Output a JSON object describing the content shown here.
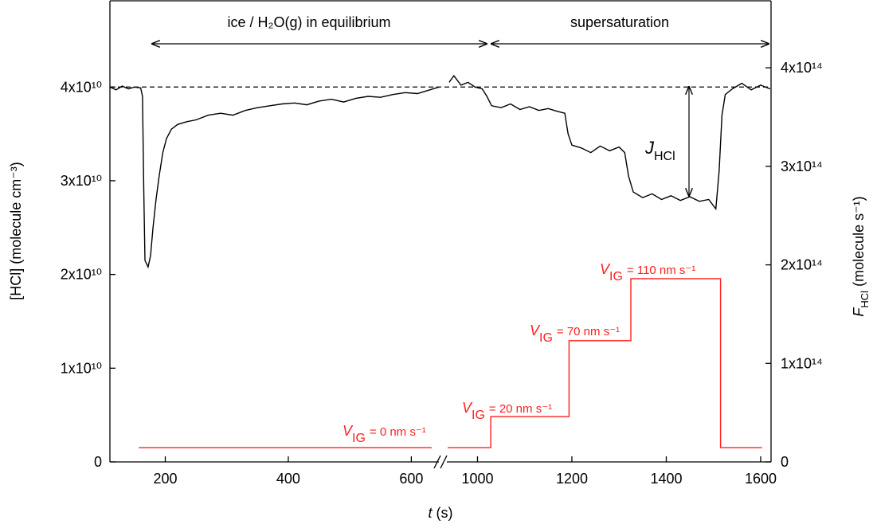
{
  "chart_data": {
    "type": "line",
    "x_label": {
      "symbol": "t",
      "text": "(s)"
    },
    "y_label": "[HCl] (molecule cm⁻³)",
    "y2_label": {
      "symbol": "F",
      "subscript": "HCl",
      "text": "(molecule s⁻¹)"
    },
    "xlim": [
      110,
      1622
    ],
    "xbreak": [
      650,
      930
    ],
    "xticks": [
      200,
      400,
      600,
      1000,
      1200,
      1400,
      1600
    ],
    "ylim": [
      0,
      49200000000.0
    ],
    "yticks": [
      0,
      {
        "value": 10000000000.0,
        "label": "1x10¹⁰"
      },
      {
        "value": 20000000000.0,
        "label": "2x10¹⁰"
      },
      {
        "value": 30000000000.0,
        "label": "3x10¹⁰"
      },
      {
        "value": 40000000000.0,
        "label": "4x10¹⁰"
      }
    ],
    "y2lim": [
      0,
      468000000000000.0
    ],
    "y2ticks": [
      0,
      {
        "value": 100000000000000.0,
        "label": "1x10¹⁴"
      },
      {
        "value": 200000000000000.0,
        "label": "2x10¹⁴"
      },
      {
        "value": 300000000000000.0,
        "label": "3x10¹⁴"
      },
      {
        "value": 400000000000000.0,
        "label": "4x10¹⁴"
      }
    ],
    "reference_line": 40000000000.0,
    "series": [
      {
        "color": "#000000",
        "axis": "y",
        "x": [
          110,
          120,
          130,
          140,
          150,
          160,
          163,
          165,
          167,
          172,
          176,
          180,
          185,
          190,
          196,
          202,
          210,
          220,
          235,
          250,
          270,
          290,
          310,
          330,
          350,
          370,
          390,
          410,
          430,
          450,
          470,
          490,
          510,
          530,
          550,
          570,
          590,
          610,
          630,
          645,
          800,
          940,
          950,
          965,
          980,
          995,
          1010,
          1020,
          1030,
          1050,
          1070,
          1090,
          1110,
          1130,
          1150,
          1170,
          1185,
          1192,
          1200,
          1220,
          1240,
          1260,
          1280,
          1300,
          1312,
          1320,
          1330,
          1350,
          1370,
          1390,
          1410,
          1430,
          1450,
          1470,
          1490,
          1505,
          1512,
          1518,
          1525,
          1540,
          1560,
          1580,
          1600,
          1620
        ],
        "values": [
          40000000000.0,
          39700000000.0,
          40100000000.0,
          39800000000.0,
          40000000000.0,
          39900000000.0,
          39000000000.0,
          29000000000.0,
          21500000000.0,
          20800000000.0,
          22000000000.0,
          25000000000.0,
          28000000000.0,
          30500000000.0,
          33000000000.0,
          34500000000.0,
          35500000000.0,
          36000000000.0,
          36300000000.0,
          36500000000.0,
          37000000000.0,
          37200000000.0,
          37000000000.0,
          37500000000.0,
          37800000000.0,
          38000000000.0,
          38200000000.0,
          38300000000.0,
          38100000000.0,
          38500000000.0,
          38700000000.0,
          38400000000.0,
          38800000000.0,
          39000000000.0,
          38900000000.0,
          39200000000.0,
          39400000000.0,
          39300000000.0,
          39700000000.0,
          40000000000.0,
          null,
          40500000000.0,
          41200000000.0,
          40200000000.0,
          40500000000.0,
          40000000000.0,
          39800000000.0,
          39000000000.0,
          38000000000.0,
          37800000000.0,
          38200000000.0,
          37600000000.0,
          37900000000.0,
          37500000000.0,
          37700000000.0,
          37400000000.0,
          37200000000.0,
          35000000000.0,
          33800000000.0,
          33500000000.0,
          33000000000.0,
          33700000000.0,
          33200000000.0,
          33600000000.0,
          33000000000.0,
          30500000000.0,
          28800000000.0,
          28200000000.0,
          28600000000.0,
          28000000000.0,
          28400000000.0,
          27900000000.0,
          28300000000.0,
          27800000000.0,
          28000000000.0,
          27000000000.0,
          31000000000.0,
          37000000000.0,
          39200000000.0,
          39800000000.0,
          40400000000.0,
          39700000000.0,
          40200000000.0,
          39800000000.0
        ]
      },
      {
        "color": "#ff2020",
        "axis": "y2",
        "x": [
          157,
          633,
          800,
          937,
          1028,
          1028,
          1194,
          1194,
          1325,
          1325,
          1515,
          1515,
          1603
        ],
        "values": [
          14500000000000.0,
          14500000000000.0,
          null,
          14500000000000.0,
          14500000000000.0,
          46000000000000.0,
          46000000000000.0,
          123000000000000.0,
          123000000000000.0,
          186000000000000.0,
          186000000000000.0,
          14500000000000.0,
          14500000000000.0
        ]
      }
    ],
    "annotations": [
      {
        "text": "ice / H₂O(g) in equilibrium"
      },
      {
        "text": "supersaturation"
      },
      {
        "symbol": "J",
        "subscript": "HCl"
      },
      {
        "symbol": "V",
        "subscript": "IG",
        "text": "= 0 nm s⁻¹"
      },
      {
        "symbol": "V",
        "subscript": "IG",
        "text": "= 20 nm s⁻¹"
      },
      {
        "symbol": "V",
        "subscript": "IG",
        "text": "= 70 nm s⁻¹"
      },
      {
        "symbol": "V",
        "subscript": "IG",
        "text": "= 110 nm s⁻¹"
      }
    ]
  }
}
